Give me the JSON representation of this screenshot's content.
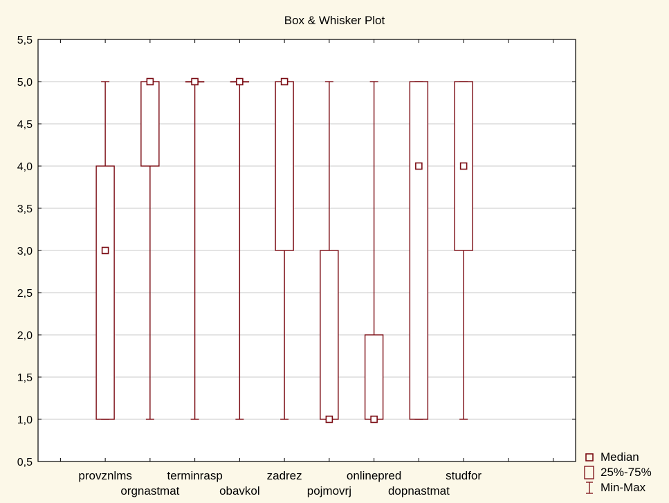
{
  "chart_data": {
    "type": "boxplot",
    "title": "Box & Whisker Plot",
    "xlabel": "",
    "ylabel": "",
    "ylim": [
      0.5,
      5.5
    ],
    "yticks": [
      "0,5",
      "1,0",
      "1,5",
      "2,0",
      "2,5",
      "3,0",
      "3,5",
      "4,0",
      "4,5",
      "5,0",
      "5,5"
    ],
    "grid": true,
    "categories": [
      "provznlms",
      "orgnastmat",
      "terminrasp",
      "obavkol",
      "zadrez",
      "pojmovrj",
      "onlinepred",
      "dopnastmat",
      "studfor"
    ],
    "boxes": [
      {
        "name": "provznlms",
        "min": 1,
        "q1": 1,
        "median": 3,
        "q3": 4,
        "max": 5
      },
      {
        "name": "orgnastmat",
        "min": 1,
        "q1": 4,
        "median": 5,
        "q3": 5,
        "max": 5
      },
      {
        "name": "terminrasp",
        "min": 1,
        "q1": 5,
        "median": 5,
        "q3": 5,
        "max": 5
      },
      {
        "name": "obavkol",
        "min": 1,
        "q1": 5,
        "median": 5,
        "q3": 5,
        "max": 5
      },
      {
        "name": "zadrez",
        "min": 1,
        "q1": 3,
        "median": 5,
        "q3": 5,
        "max": 5
      },
      {
        "name": "pojmovrj",
        "min": 1,
        "q1": 1,
        "median": 1,
        "q3": 3,
        "max": 5
      },
      {
        "name": "onlinepred",
        "min": 1,
        "q1": 1,
        "median": 1,
        "q3": 2,
        "max": 5
      },
      {
        "name": "dopnastmat",
        "min": 1,
        "q1": 1,
        "median": 4,
        "q3": 5,
        "max": 5
      },
      {
        "name": "studfor",
        "min": 1,
        "q1": 3,
        "median": 4,
        "q3": 5,
        "max": 5
      }
    ],
    "legend": {
      "position": "bottom-right",
      "entries": [
        "Median",
        "25%-75%",
        "Min-Max"
      ]
    },
    "colors": {
      "series": "#7a0a12",
      "grid": "#c8c8c8",
      "background": "#fcf8e8",
      "plot_area": "#ffffff"
    }
  }
}
